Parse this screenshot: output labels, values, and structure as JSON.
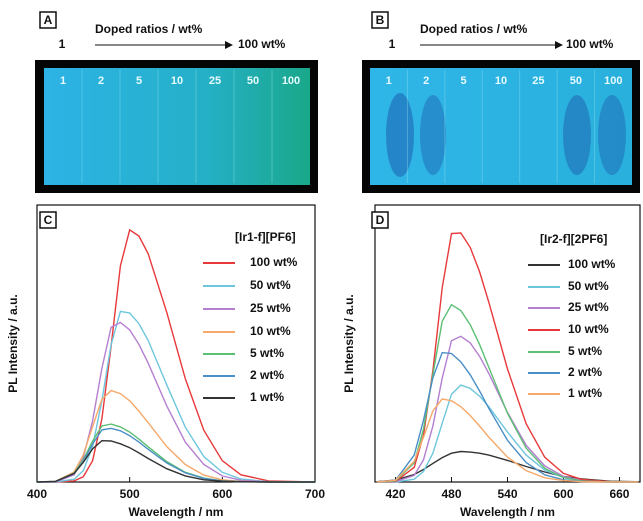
{
  "photo_panels": [
    {
      "label": "A",
      "heading": "Doped ratios / wt%",
      "start": "1",
      "end": "100 wt%",
      "samples": [
        "1",
        "2",
        "5",
        "10",
        "25",
        "50",
        "100"
      ]
    },
    {
      "label": "B",
      "heading": "Doped ratios / wt%",
      "start": "1",
      "end": "100 wt%",
      "samples": [
        "1",
        "2",
        "5",
        "10",
        "25",
        "50",
        "100"
      ]
    }
  ],
  "chart_data": [
    {
      "type": "line",
      "panel_label": "C",
      "legend_title": "[Ir1-f][PF6]",
      "x_label": "Wavelength / nm",
      "y_label": "PL Intensity / a.u.",
      "xlim": [
        400,
        700
      ],
      "xticks": [
        400,
        500,
        600,
        700
      ],
      "ylim": [
        0,
        100
      ],
      "x": [
        400,
        420,
        440,
        450,
        460,
        470,
        480,
        490,
        500,
        510,
        520,
        540,
        560,
        580,
        600,
        620,
        650,
        700
      ],
      "series": [
        {
          "name": "100 wt%",
          "color": "#e8393a",
          "values": [
            0,
            0,
            0.4,
            1.9,
            7.7,
            22.8,
            49,
            78,
            91,
            88.8,
            82.4,
            61.3,
            37.3,
            18.7,
            7.7,
            2.6,
            0.4,
            0
          ]
        },
        {
          "name": "50 wt%",
          "color": "#6ec6dd",
          "values": [
            0,
            0,
            1,
            4.1,
            12.8,
            29.4,
            49.6,
            61.6,
            61,
            57.2,
            51.1,
            35.1,
            19.8,
            9.2,
            3.5,
            1.1,
            0.1,
            0
          ]
        },
        {
          "name": "25 wt%",
          "color": "#b57fd0",
          "values": [
            0,
            0,
            2.6,
            8.8,
            22.1,
            41,
            55.8,
            57.6,
            54.9,
            49.7,
            42.9,
            27.5,
            14.4,
            6.3,
            2.2,
            0.6,
            0.1,
            0
          ]
        },
        {
          "name": "10 wt%",
          "color": "#f5a96a",
          "values": [
            0,
            0.2,
            3.6,
            9.8,
            20,
            29.9,
            33,
            31.9,
            29.3,
            25.6,
            21.4,
            12.8,
            6.3,
            2.5,
            0.8,
            0.2,
            0,
            0
          ]
        },
        {
          "name": "5 wt%",
          "color": "#5cbf74",
          "values": [
            0,
            0.2,
            3.2,
            8,
            14.8,
            20.2,
            20.9,
            19.9,
            18,
            15.5,
            12.7,
            7.4,
            3.5,
            1.4,
            0.4,
            0.1,
            0,
            0
          ]
        },
        {
          "name": "2 wt%",
          "color": "#4a8fc6",
          "values": [
            0,
            0.2,
            3,
            7.4,
            13.7,
            18.8,
            19.4,
            18.5,
            16.7,
            14.4,
            11.8,
            6.9,
            3.3,
            1.3,
            0.4,
            0.1,
            0,
            0
          ]
        },
        {
          "name": "1 wt%",
          "color": "#333333",
          "values": [
            0,
            0.2,
            3.1,
            7.1,
            12,
            14.9,
            14.8,
            13.8,
            12.4,
            10.5,
            8.5,
            4.8,
            2.2,
            0.8,
            0.3,
            0.1,
            0,
            0
          ]
        }
      ]
    },
    {
      "type": "line",
      "panel_label": "D",
      "legend_title": "[Ir2-f][2PF6]",
      "x_label": "Wavelength / nm",
      "y_label": "PL Intensity / a.u.",
      "xlim": [
        398,
        682
      ],
      "xticks": [
        420,
        480,
        540,
        600,
        660
      ],
      "ylim": [
        0,
        100
      ],
      "x": [
        400,
        420,
        440,
        450,
        460,
        470,
        480,
        490,
        500,
        510,
        520,
        540,
        560,
        580,
        600,
        620,
        650,
        680
      ],
      "series": [
        {
          "name": "100 wt%",
          "color": "#333333",
          "values": [
            0.1,
            0.7,
            2.7,
            4.5,
            6.7,
            8.8,
            10.4,
            11,
            10.8,
            10.4,
            9.7,
            7.8,
            5.6,
            3.6,
            2,
            1.1,
            0.3,
            0.1
          ]
        },
        {
          "name": "50 wt%",
          "color": "#6ec6dd",
          "values": [
            0,
            0,
            1,
            3.8,
            10.4,
            21.2,
            31.7,
            35,
            33.8,
            31,
            27.2,
            18,
            9.7,
            4.3,
            1.6,
            0.5,
            0.1,
            0
          ]
        },
        {
          "name": "25 wt%",
          "color": "#b57fd0",
          "values": [
            0,
            0.1,
            2.4,
            8,
            20.2,
            37.5,
            51,
            52.6,
            50.2,
            45.4,
            39.2,
            25.1,
            13.2,
            5.8,
            2,
            0.6,
            0.1,
            0
          ]
        },
        {
          "name": "10 wt%",
          "color": "#e8393a",
          "values": [
            0,
            0.2,
            5.3,
            16.9,
            40.2,
            70.1,
            89.7,
            89.9,
            84.7,
            76,
            64.9,
            40.8,
            21,
            8.9,
            3.1,
            0.9,
            0.1,
            0
          ]
        },
        {
          "name": "5 wt%",
          "color": "#5cbf74",
          "values": [
            0,
            0.4,
            6.9,
            19.1,
            38.8,
            58,
            64,
            61.9,
            56.8,
            49.7,
            41.4,
            24.8,
            12.2,
            4.9,
            1.6,
            0.4,
            0,
            0
          ]
        },
        {
          "name": "2 wt%",
          "color": "#4a8fc6",
          "values": [
            0,
            0.6,
            9.7,
            22.3,
            37.6,
            46.7,
            46.4,
            43.4,
            38.7,
            32.9,
            26.6,
            15,
            7,
            2.6,
            0.8,
            0.2,
            0,
            0
          ]
        },
        {
          "name": "1 wt%",
          "color": "#f5a96a",
          "values": [
            0,
            0.6,
            7.5,
            16.2,
            25.7,
            30,
            29.3,
            27.2,
            24,
            20.2,
            16.2,
            9,
            4.1,
            1.5,
            0.5,
            0.1,
            0,
            0
          ]
        }
      ]
    }
  ]
}
